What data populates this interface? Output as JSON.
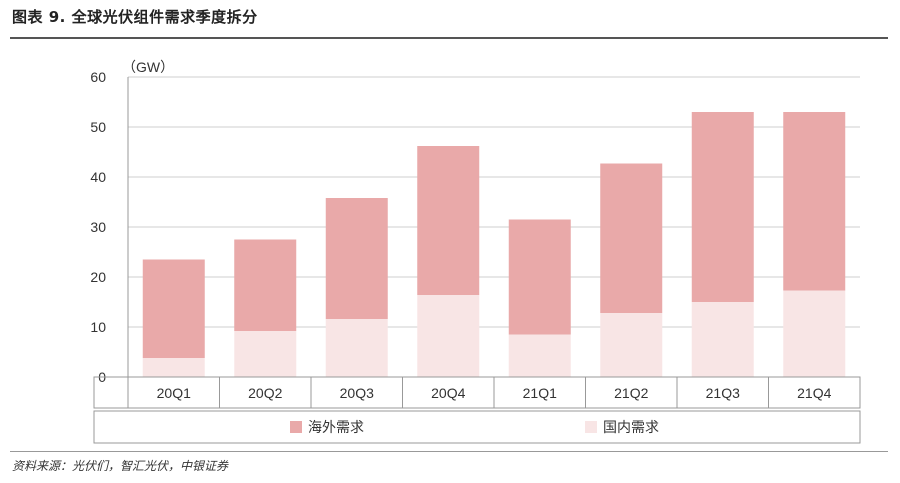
{
  "header": {
    "title": "图表 9. 全球光伏组件需求季度拆分"
  },
  "footer": {
    "source": "资料来源：光伏们，智汇光伏，中银证券"
  },
  "chart_data": {
    "type": "bar",
    "stacked": true,
    "unit_label": "（GW）",
    "categories": [
      "20Q1",
      "20Q2",
      "20Q3",
      "20Q4",
      "21Q1",
      "21Q2",
      "21Q3",
      "21Q4"
    ],
    "series": [
      {
        "name": "国内需求",
        "color": "#f8e5e5",
        "values": [
          3.8,
          9.2,
          11.6,
          16.4,
          8.5,
          12.8,
          15.0,
          17.3
        ]
      },
      {
        "name": "海外需求",
        "color": "#e9a9a9",
        "values": [
          19.7,
          18.3,
          24.2,
          29.8,
          23.0,
          29.9,
          38.0,
          35.7
        ]
      }
    ],
    "legend_order": [
      "海外需求",
      "国内需求"
    ],
    "ylim": [
      0,
      60
    ],
    "yticks": [
      0,
      10,
      20,
      30,
      40,
      50,
      60
    ],
    "grid": true,
    "legend_position": "bottom"
  }
}
